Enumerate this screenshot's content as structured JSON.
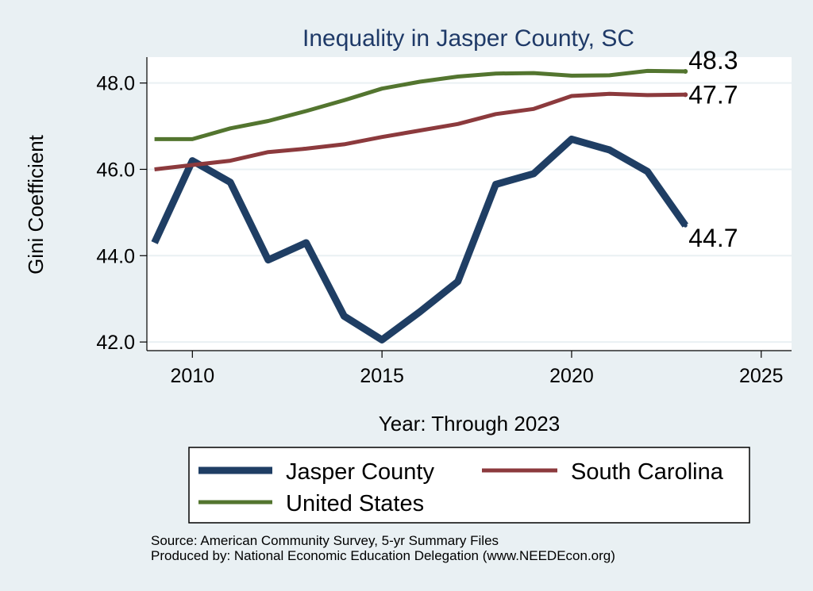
{
  "chart_data": {
    "type": "line",
    "title": "Inequality in Jasper County, SC",
    "xlabel": "Year: Through 2023",
    "ylabel": "Gini Coefficient",
    "xlim": [
      2008.8,
      2025.8
    ],
    "ylim": [
      41.8,
      48.6
    ],
    "xticks": [
      2010,
      2015,
      2020,
      2025
    ],
    "yticks": [
      42.0,
      44.0,
      46.0,
      48.0
    ],
    "ytick_labels": [
      "42.0",
      "44.0",
      "46.0",
      "48.0"
    ],
    "grid": true,
    "legend_position": "bottom",
    "x": [
      2009,
      2010,
      2011,
      2012,
      2013,
      2014,
      2015,
      2016,
      2017,
      2018,
      2019,
      2020,
      2021,
      2022,
      2023
    ],
    "series": [
      {
        "name": "Jasper County",
        "color": "#1f3e64",
        "values": [
          44.3,
          46.2,
          45.7,
          43.9,
          44.3,
          42.6,
          42.05,
          42.7,
          43.4,
          45.65,
          45.9,
          46.7,
          46.45,
          45.95,
          44.7
        ],
        "end_label": "44.7"
      },
      {
        "name": "South Carolina",
        "color": "#8c3a3d",
        "values": [
          46.0,
          46.1,
          46.2,
          46.4,
          46.48,
          46.58,
          46.75,
          46.9,
          47.05,
          47.28,
          47.4,
          47.7,
          47.75,
          47.72,
          47.73
        ],
        "end_label": "47.7"
      },
      {
        "name": "United States",
        "color": "#53752f",
        "values": [
          46.7,
          46.7,
          46.95,
          47.12,
          47.35,
          47.6,
          47.87,
          48.03,
          48.15,
          48.22,
          48.23,
          48.17,
          48.18,
          48.28,
          48.27
        ],
        "end_label": "48.3"
      }
    ]
  },
  "legend": {
    "items": [
      "Jasper County",
      "South Carolina",
      "United States"
    ]
  },
  "source": {
    "line1": "Source: American Community Survey, 5-yr Summary Files",
    "line2": "Produced by: National Economic Education Delegation (www.NEEDEcon.org)"
  }
}
